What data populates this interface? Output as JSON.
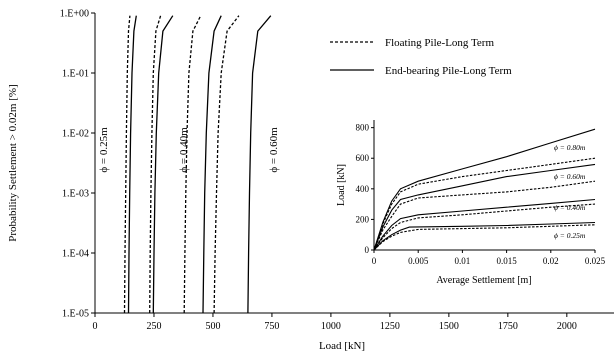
{
  "chart_data": [
    {
      "type": "line",
      "xlabel": "Load [kN]",
      "ylabel": "Probability Settlement > 0.02m [%]",
      "xlim": [
        0,
        2200
      ],
      "ylim": [
        1e-05,
        1
      ],
      "yscale": "log",
      "x_ticks": [
        "0",
        "250",
        "500",
        "750",
        "1000",
        "1250",
        "1500",
        "1750",
        "2000"
      ],
      "x_tick_values": [
        0,
        250,
        500,
        750,
        1000,
        1250,
        1500,
        1750,
        2000
      ],
      "y_ticks": [
        "1.E-05",
        "1.E-04",
        "1.E-03",
        "1.E-02",
        "1.E-01",
        "1.E+00"
      ],
      "y_tick_values": [
        1e-05,
        0.0001,
        0.001,
        0.01,
        0.1,
        1
      ],
      "legend": [
        {
          "label": "Floating Pile-Long Term",
          "style": "dashed"
        },
        {
          "label": "End-bearing Pile-Long Term",
          "style": "solid"
        }
      ],
      "curve_labels": [
        "ϕ = 0.25m",
        "ϕ = 0.40m",
        "ϕ = 0.60m",
        "ϕ = 0.80m"
      ],
      "series": [
        {
          "style": "dashed",
          "points": [
            [
              125,
              1e-05
            ],
            [
              127,
              0.0001
            ],
            [
              130,
              0.001
            ],
            [
              133,
              0.01
            ],
            [
              137,
              0.1
            ],
            [
              142,
              0.5
            ],
            [
              148,
              0.9
            ]
          ]
        },
        {
          "style": "solid",
          "points": [
            [
              142,
              1e-05
            ],
            [
              144,
              0.0001
            ],
            [
              147,
              0.001
            ],
            [
              151,
              0.01
            ],
            [
              157,
              0.1
            ],
            [
              165,
              0.5
            ],
            [
              175,
              0.9
            ]
          ]
        },
        {
          "style": "dashed",
          "points": [
            [
              232,
              1e-05
            ],
            [
              234,
              0.0001
            ],
            [
              237,
              0.001
            ],
            [
              241,
              0.01
            ],
            [
              247,
              0.1
            ],
            [
              258,
              0.5
            ],
            [
              278,
              0.9
            ]
          ]
        },
        {
          "style": "solid",
          "points": [
            [
              247,
              1e-05
            ],
            [
              250,
              0.0001
            ],
            [
              254,
              0.001
            ],
            [
              260,
              0.01
            ],
            [
              270,
              0.1
            ],
            [
              288,
              0.5
            ],
            [
              330,
              0.9
            ]
          ]
        },
        {
          "style": "dashed",
          "points": [
            [
              378,
              1e-05
            ],
            [
              381,
              0.0001
            ],
            [
              385,
              0.001
            ],
            [
              390,
              0.01
            ],
            [
              398,
              0.1
            ],
            [
              415,
              0.5
            ],
            [
              448,
              0.9
            ]
          ]
        },
        {
          "style": "solid",
          "points": [
            [
              458,
              1e-05
            ],
            [
              461,
              0.0001
            ],
            [
              465,
              0.001
            ],
            [
              472,
              0.01
            ],
            [
              483,
              0.1
            ],
            [
              505,
              0.5
            ],
            [
              535,
              0.9
            ]
          ]
        },
        {
          "style": "dashed",
          "points": [
            [
              505,
              1e-05
            ],
            [
              509,
              0.0001
            ],
            [
              515,
              0.001
            ],
            [
              522,
              0.01
            ],
            [
              535,
              0.1
            ],
            [
              560,
              0.5
            ],
            [
              610,
              0.9
            ]
          ]
        },
        {
          "style": "solid",
          "points": [
            [
              648,
              1e-05
            ],
            [
              651,
              0.0001
            ],
            [
              655,
              0.001
            ],
            [
              660,
              0.01
            ],
            [
              668,
              0.1
            ],
            [
              690,
              0.5
            ],
            [
              745,
              0.9
            ]
          ]
        }
      ]
    },
    {
      "type": "line",
      "xlabel": "Average Settlement [m]",
      "ylabel": "Load [kN]",
      "xlim": [
        0,
        0.025
      ],
      "ylim": [
        0,
        850
      ],
      "x_ticks": [
        "0",
        "0.005",
        "0.01",
        "0.015",
        "0.02",
        "0.025"
      ],
      "x_tick_values": [
        0,
        0.005,
        0.01,
        0.015,
        0.02,
        0.025
      ],
      "y_ticks": [
        "0",
        "200",
        "400",
        "600",
        "800"
      ],
      "y_tick_values": [
        0,
        200,
        400,
        600,
        800
      ],
      "curve_labels": [
        "ϕ = 0.80m",
        "ϕ = 0.60m",
        "ϕ = 0.40m",
        "ϕ = 0.25m"
      ],
      "series": [
        {
          "style": "solid",
          "points": [
            [
              0,
              0
            ],
            [
              0.001,
              180
            ],
            [
              0.002,
              320
            ],
            [
              0.003,
              400
            ],
            [
              0.005,
              450
            ],
            [
              0.01,
              530
            ],
            [
              0.015,
              610
            ],
            [
              0.02,
              700
            ],
            [
              0.025,
              790
            ]
          ]
        },
        {
          "style": "dashed",
          "points": [
            [
              0,
              0
            ],
            [
              0.001,
              170
            ],
            [
              0.002,
              300
            ],
            [
              0.003,
              380
            ],
            [
              0.005,
              430
            ],
            [
              0.01,
              480
            ],
            [
              0.015,
              520
            ],
            [
              0.02,
              560
            ],
            [
              0.025,
              600
            ]
          ]
        },
        {
          "style": "solid",
          "points": [
            [
              0,
              0
            ],
            [
              0.001,
              150
            ],
            [
              0.002,
              260
            ],
            [
              0.003,
              330
            ],
            [
              0.005,
              360
            ],
            [
              0.01,
              420
            ],
            [
              0.015,
              480
            ],
            [
              0.02,
              520
            ],
            [
              0.025,
              560
            ]
          ]
        },
        {
          "style": "dashed",
          "points": [
            [
              0,
              0
            ],
            [
              0.001,
              130
            ],
            [
              0.002,
              220
            ],
            [
              0.003,
              300
            ],
            [
              0.005,
              340
            ],
            [
              0.01,
              360
            ],
            [
              0.015,
              380
            ],
            [
              0.02,
              410
            ],
            [
              0.025,
              450
            ]
          ]
        },
        {
          "style": "solid",
          "points": [
            [
              0,
              0
            ],
            [
              0.001,
              90
            ],
            [
              0.002,
              160
            ],
            [
              0.003,
              205
            ],
            [
              0.005,
              230
            ],
            [
              0.01,
              255
            ],
            [
              0.015,
              280
            ],
            [
              0.02,
              305
            ],
            [
              0.025,
              330
            ]
          ]
        },
        {
          "style": "dashed",
          "points": [
            [
              0,
              0
            ],
            [
              0.001,
              80
            ],
            [
              0.002,
              140
            ],
            [
              0.003,
              180
            ],
            [
              0.005,
              210
            ],
            [
              0.01,
              230
            ],
            [
              0.015,
              255
            ],
            [
              0.02,
              280
            ],
            [
              0.025,
              300
            ]
          ]
        },
        {
          "style": "solid",
          "points": [
            [
              0,
              0
            ],
            [
              0.001,
              60
            ],
            [
              0.002,
              100
            ],
            [
              0.003,
              130
            ],
            [
              0.004,
              150
            ],
            [
              0.01,
              155
            ],
            [
              0.015,
              160
            ],
            [
              0.02,
              170
            ],
            [
              0.025,
              180
            ]
          ]
        },
        {
          "style": "dashed",
          "points": [
            [
              0,
              0
            ],
            [
              0.001,
              55
            ],
            [
              0.002,
              90
            ],
            [
              0.003,
              115
            ],
            [
              0.005,
              135
            ],
            [
              0.01,
              140
            ],
            [
              0.015,
              145
            ],
            [
              0.02,
              155
            ],
            [
              0.025,
              165
            ]
          ]
        }
      ]
    }
  ]
}
